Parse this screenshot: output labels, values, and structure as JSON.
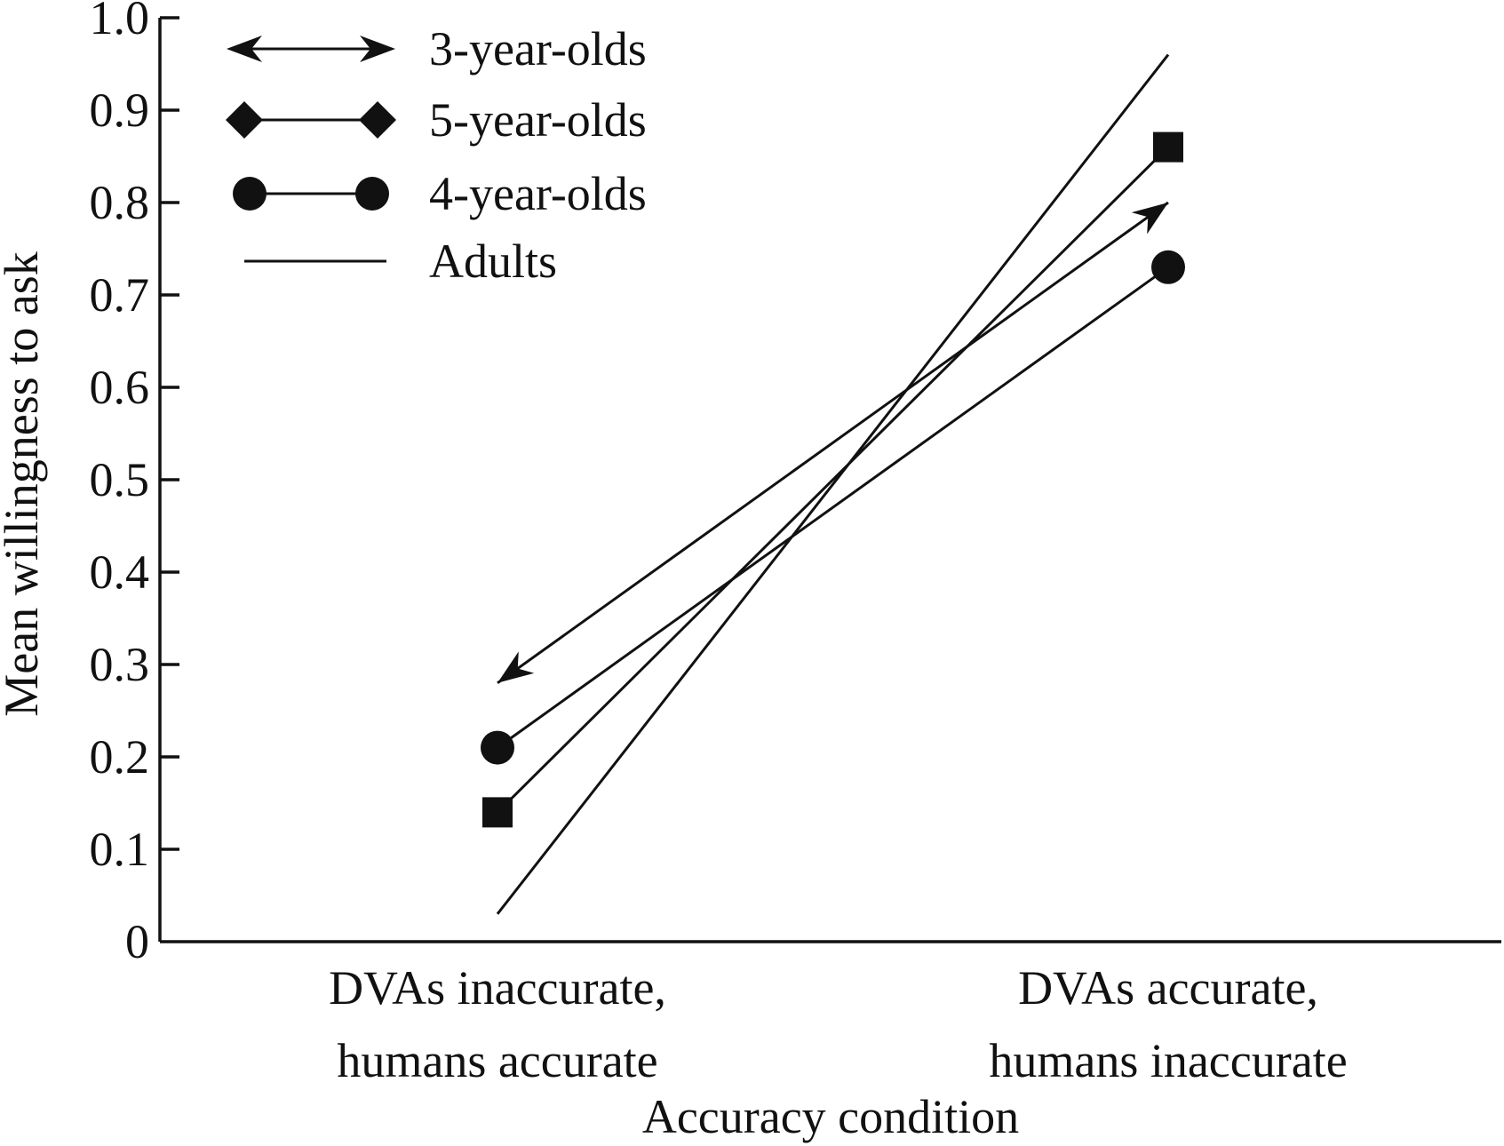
{
  "chart_data": {
    "type": "line",
    "title": "",
    "xlabel": "Accuracy condition",
    "ylabel": "Mean willingness to ask",
    "ylim": [
      0,
      1.0
    ],
    "yticks": [
      "0",
      "0.1",
      "0.2",
      "0.3",
      "0.4",
      "0.5",
      "0.6",
      "0.7",
      "0.8",
      "0.9",
      "1.0"
    ],
    "categories": [
      [
        "DVAs inaccurate,",
        "humans accurate"
      ],
      [
        "DVAs accurate,",
        "humans inaccurate"
      ]
    ],
    "legend_position": "top-left",
    "series": [
      {
        "name": "3-year-olds",
        "marker": "arrow",
        "values": [
          0.28,
          0.8
        ]
      },
      {
        "name": "5-year-olds",
        "marker": "diamond",
        "values": [
          0.14,
          0.86
        ]
      },
      {
        "name": "4-year-olds",
        "marker": "circle",
        "values": [
          0.21,
          0.73
        ]
      },
      {
        "name": "Adults",
        "marker": "none",
        "values": [
          0.03,
          0.96
        ]
      }
    ],
    "colors": {
      "ink": "#111111",
      "background": "#ffffff"
    }
  }
}
